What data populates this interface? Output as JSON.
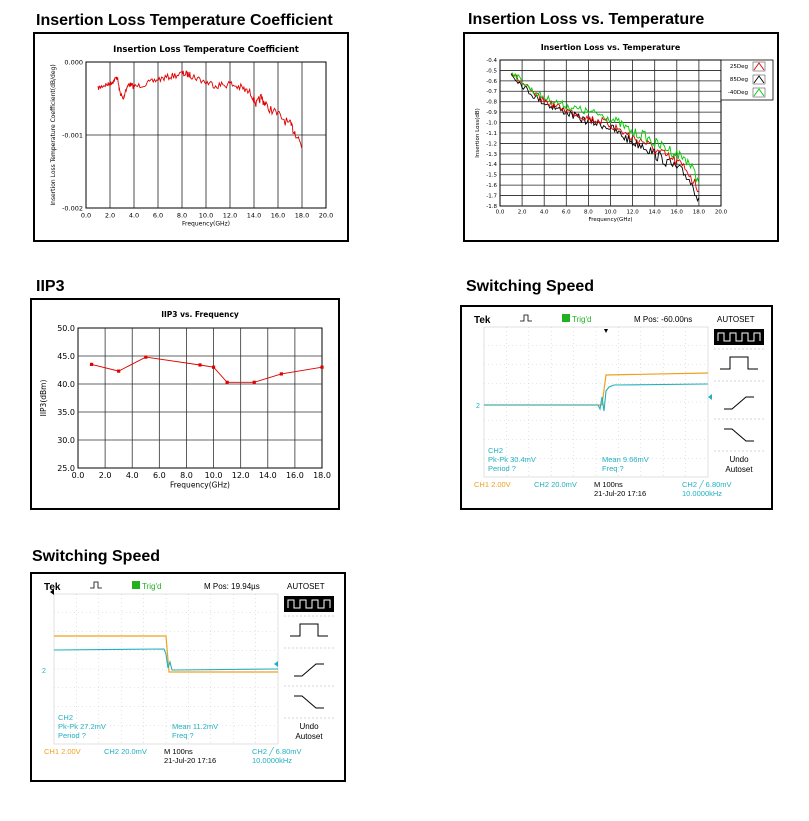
{
  "sections": {
    "s1": "Insertion Loss Temperature Coefficient",
    "s2": "Insertion Loss vs. Temperature",
    "s3": "IIP3",
    "s4": "Switching Speed",
    "s5": "Switching Speed"
  },
  "chart_data": [
    {
      "type": "line",
      "title": "Insertion Loss Temperature Coefficient",
      "xlabel": "Frequency(GHz)",
      "ylabel": "Insertion Loss Temperature Coefficient(dB/deg)",
      "xlim": [
        0,
        20
      ],
      "ylim": [
        -0.002,
        0
      ],
      "x_ticks": [
        "0.0",
        "2.0",
        "4.0",
        "6.0",
        "8.0",
        "10.0",
        "12.0",
        "14.0",
        "16.0",
        "18.0",
        "20.0"
      ],
      "y_ticks": [
        "0.000",
        "-0.001",
        "-0.002"
      ],
      "grid": true,
      "series": [
        {
          "color": "#e00000",
          "x": [
            1,
            1.5,
            2,
            2.3,
            2.6,
            2.8,
            3.1,
            3.3,
            3.6,
            4,
            5,
            6,
            7,
            8,
            8.5,
            9,
            10,
            11,
            12,
            13,
            13.8,
            14.2,
            14.6,
            15,
            16,
            17,
            17.5,
            18
          ],
          "y": [
            -0.00036,
            -0.00032,
            -0.0003,
            -0.00026,
            -0.0002,
            -0.0004,
            -0.00052,
            -0.00038,
            -0.0003,
            -0.00034,
            -0.0003,
            -0.00024,
            -0.0002,
            -0.00016,
            -0.00017,
            -0.0002,
            -0.00028,
            -0.00032,
            -0.0003,
            -0.00036,
            -0.00044,
            -0.00058,
            -0.00048,
            -0.0006,
            -0.00072,
            -0.00086,
            -0.00098,
            -0.00115
          ]
        }
      ]
    },
    {
      "type": "line",
      "title": "Insertion Loss vs. Temperature",
      "xlabel": "Frequency(GHz)",
      "ylabel": "Insertion Loss(dB)",
      "xlim": [
        0,
        20
      ],
      "ylim": [
        -1.8,
        -0.4
      ],
      "x_ticks": [
        "0.0",
        "2.0",
        "4.0",
        "6.0",
        "8.0",
        "10.0",
        "12.0",
        "14.0",
        "16.0",
        "18.0",
        "20.0"
      ],
      "y_ticks": [
        "-0.4",
        "-0.5",
        "-0.6",
        "-0.7",
        "-0.8",
        "-0.9",
        "-1.0",
        "-1.1",
        "-1.2",
        "-1.3",
        "-1.4",
        "-1.5",
        "-1.6",
        "-1.7",
        "-1.8"
      ],
      "grid": true,
      "legend": "top-right",
      "series": [
        {
          "name": "25Deg",
          "color": "#e00000",
          "x": [
            1,
            2,
            3,
            4,
            5,
            6,
            7,
            8,
            9,
            10,
            11,
            12,
            13,
            14,
            15,
            16,
            17,
            18
          ],
          "y": [
            -0.52,
            -0.62,
            -0.72,
            -0.79,
            -0.84,
            -0.88,
            -0.92,
            -0.96,
            -0.98,
            -1.02,
            -1.08,
            -1.15,
            -1.18,
            -1.26,
            -1.32,
            -1.38,
            -1.46,
            -1.66
          ]
        },
        {
          "name": "85Deg",
          "color": "#000000",
          "x": [
            1,
            2,
            3,
            4,
            5,
            6,
            7,
            8,
            9,
            10,
            11,
            12,
            13,
            14,
            15,
            16,
            17,
            18
          ],
          "y": [
            -0.53,
            -0.64,
            -0.74,
            -0.81,
            -0.86,
            -0.9,
            -0.95,
            -0.99,
            -1.01,
            -1.05,
            -1.12,
            -1.19,
            -1.22,
            -1.3,
            -1.37,
            -1.44,
            -1.52,
            -1.72
          ]
        },
        {
          "name": "-40Deg",
          "color": "#00cc00",
          "x": [
            1,
            2,
            3,
            4,
            5,
            6,
            7,
            8,
            9,
            10,
            11,
            12,
            13,
            14,
            15,
            16,
            17,
            18
          ],
          "y": [
            -0.51,
            -0.6,
            -0.7,
            -0.76,
            -0.8,
            -0.84,
            -0.87,
            -0.9,
            -0.92,
            -0.96,
            -1.02,
            -1.1,
            -1.12,
            -1.2,
            -1.24,
            -1.3,
            -1.36,
            -1.58
          ]
        }
      ]
    },
    {
      "type": "line",
      "title": "IIP3 vs. Frequency",
      "xlabel": "Frequency(GHz)",
      "ylabel": "IIP3(dBm)",
      "xlim": [
        0,
        18
      ],
      "ylim": [
        25,
        50
      ],
      "x_ticks": [
        "0.0",
        "2.0",
        "4.0",
        "6.0",
        "8.0",
        "10.0",
        "12.0",
        "14.0",
        "16.0",
        "18.0"
      ],
      "y_ticks": [
        "25.0",
        "30.0",
        "35.0",
        "40.0",
        "45.0",
        "50.0"
      ],
      "grid": true,
      "series": [
        {
          "color": "#e00000",
          "x": [
            1,
            3,
            5,
            9,
            10,
            11,
            13,
            15,
            18
          ],
          "y": [
            43.5,
            42.3,
            44.8,
            43.4,
            43.0,
            40.3,
            40.3,
            41.8,
            43.0
          ]
        }
      ]
    }
  ],
  "scope1": {
    "brand": "Tek",
    "trig": "Trig'd",
    "mpos": "M Pos: -60.00ns",
    "autoset": "AUTOSET",
    "ch2": "CH2",
    "pkpk": "Pk-Pk 30.4mV",
    "period": "Period ?",
    "mean": "Mean 9.66mV",
    "freq": "Freq ?",
    "undo": "Undo",
    "undo2": "Autoset",
    "ch1set": "CH1  2.00V",
    "ch2set": "CH2  20.0mV",
    "time": "M 100ns",
    "date": "21-Jul-20 17:16",
    "trigset": "CH2 ╱ 6.80mV",
    "trigfreq": "10.0000kHz",
    "marker": "2"
  },
  "scope2": {
    "brand": "Tek",
    "trig": "Trig'd",
    "mpos": "M Pos: 19.94µs",
    "autoset": "AUTOSET",
    "ch2": "CH2",
    "pkpk": "Pk-Pk 27.2mV",
    "period": "Period ?",
    "mean": "Mean 11.2mV",
    "freq": "Freq ?",
    "undo": "Undo",
    "undo2": "Autoset",
    "ch1set": "CH1  2.00V",
    "ch2set": "CH2  20.0mV",
    "time": "M 100ns",
    "date": "21-Jul-20 17:16",
    "trigset": "CH2 ╱ 6.80mV",
    "trigfreq": "10.0000kHz",
    "marker": "2"
  },
  "colors": {
    "ch1": "#f0a020",
    "ch2": "#20b0c0",
    "trig": "#20b020"
  }
}
